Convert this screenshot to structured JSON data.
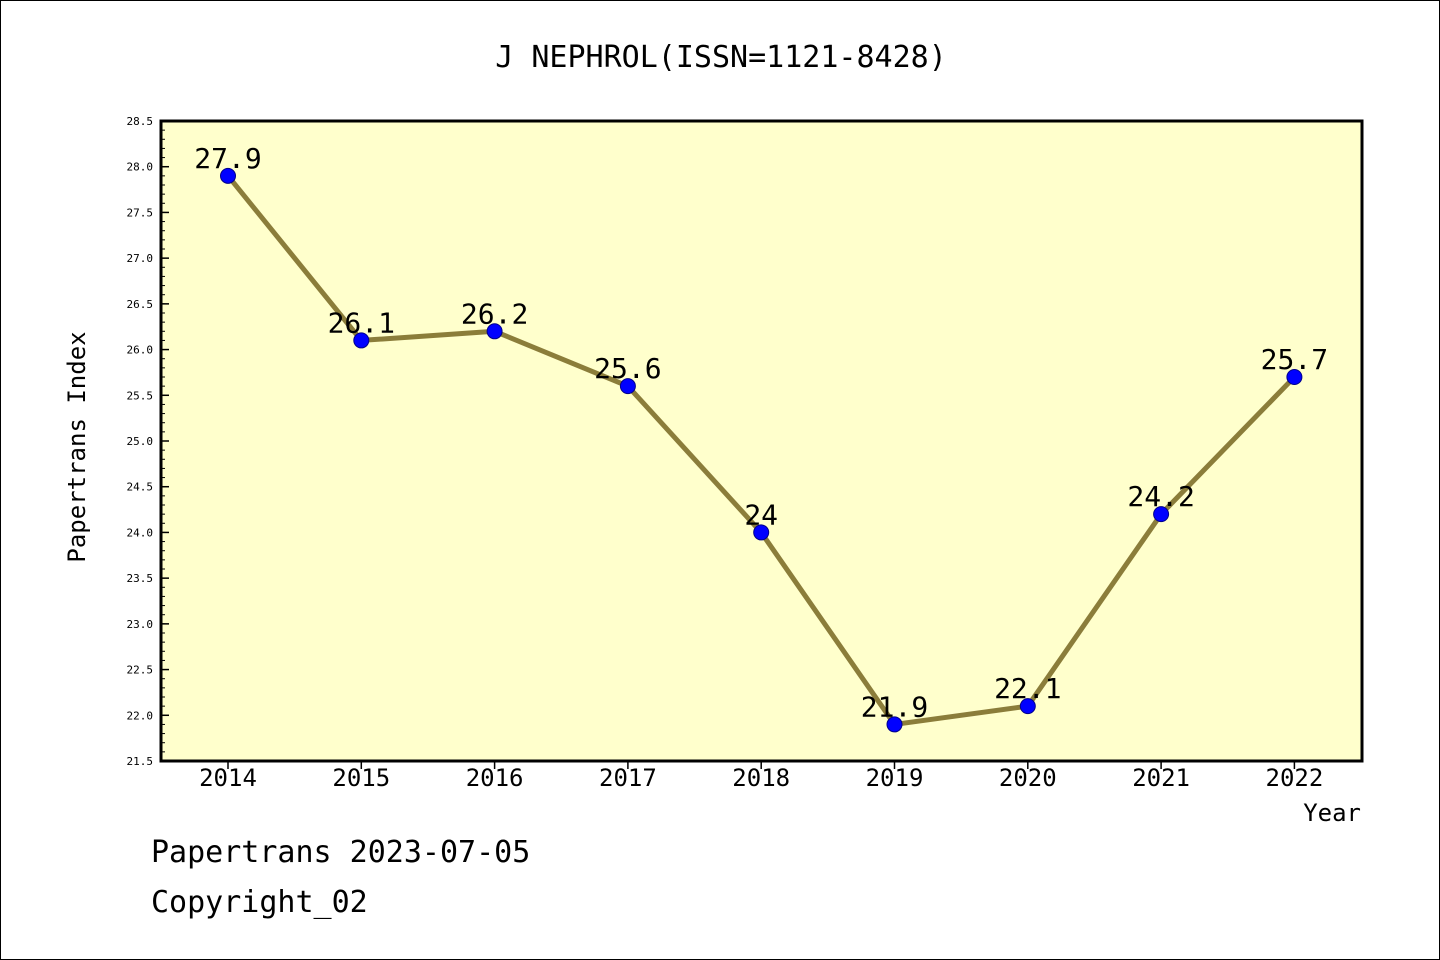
{
  "colors": {
    "plot_background": "#ffffcc",
    "line": "#8b7d3a",
    "marker": "#0000ff",
    "marker_edge": "#00008b",
    "axis": "#000000"
  },
  "chart_data": {
    "type": "line",
    "title": "J NEPHROL(ISSN=1121-8428)",
    "xlabel": "Year",
    "ylabel": "Papertrans Index",
    "categories": [
      "2014",
      "2015",
      "2016",
      "2017",
      "2018",
      "2019",
      "2020",
      "2021",
      "2022"
    ],
    "series": [
      {
        "values": [
          27.9,
          26.1,
          26.2,
          25.6,
          24.0,
          21.9,
          22.1,
          24.2,
          25.7
        ],
        "labels": [
          "27.9",
          "26.1",
          "26.2",
          "25.6",
          "24",
          "21.9",
          "22.1",
          "24.2",
          "25.7"
        ]
      }
    ],
    "ylim": [
      21.5,
      28.5
    ],
    "yticks": [
      "21.5",
      "22.0",
      "22.5",
      "23.0",
      "23.5",
      "24.0",
      "24.5",
      "25.0",
      "25.5",
      "26.0",
      "26.5",
      "27.0",
      "27.5",
      "28.0",
      "28.5"
    ],
    "grid": false,
    "legend": "none"
  },
  "footer": {
    "line1": "Papertrans 2023-07-05",
    "line2": "Copyright_02"
  }
}
